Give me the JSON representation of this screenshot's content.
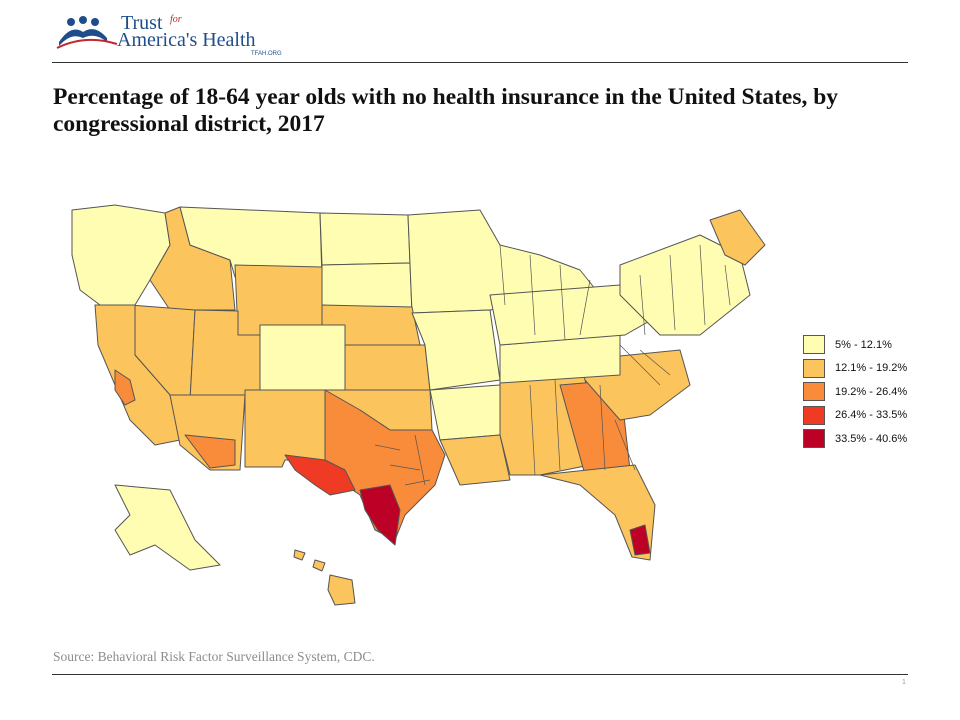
{
  "logo": {
    "line1": "Trust",
    "line1_small": "for",
    "line2": "America's Health",
    "url": "TFAH.ORG",
    "colors": {
      "blue": "#1f4d8c",
      "red": "#c4262e"
    }
  },
  "title": "Percentage of 18-64 year olds with no health insurance in the United States, by congressional district, 2017",
  "legend": {
    "items": [
      {
        "label": "5% - 12.1%",
        "color": "#fefdb2"
      },
      {
        "label": "12.1% - 19.2%",
        "color": "#fcc45c"
      },
      {
        "label": "19.2% - 26.4%",
        "color": "#f98c3a"
      },
      {
        "label": "26.4% - 33.5%",
        "color": "#ef3b24"
      },
      {
        "label": "33.5% - 40.6%",
        "color": "#bd0026"
      }
    ]
  },
  "source": "Source: Behavioral Risk Factor Surveillance System, CDC.",
  "page_number": "1"
}
